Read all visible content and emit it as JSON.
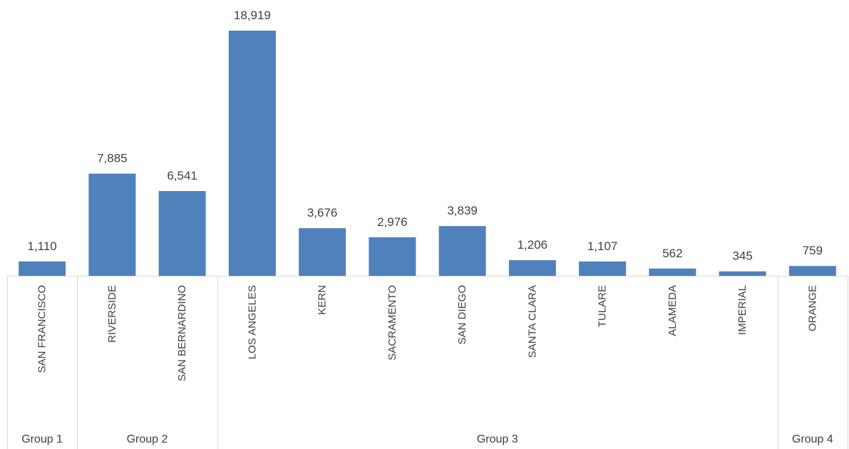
{
  "chart_data": {
    "type": "bar",
    "title": "",
    "xlabel": "",
    "ylabel": "",
    "ylim": [
      0,
      18919
    ],
    "grid": false,
    "legend": "none",
    "bar_color": "#4f81bd",
    "categories": [
      "SAN FRANCISCO",
      "RIVERSIDE",
      "SAN BERNARDINO",
      "LOS ANGELES",
      "KERN",
      "SACRAMENTO",
      "SAN DIEGO",
      "SANTA CLARA",
      "TULARE",
      "ALAMEDA",
      "IMPERIAL",
      "ORANGE"
    ],
    "values": [
      1110,
      7885,
      6541,
      18919,
      3676,
      2976,
      3839,
      1206,
      1107,
      562,
      345,
      759
    ],
    "value_labels": [
      "1,110",
      "7,885",
      "6,541",
      "18,919",
      "3,676",
      "2,976",
      "3,839",
      "1,206",
      "1,107",
      "562",
      "345",
      "759"
    ],
    "groups": [
      {
        "name": "Group 1",
        "count": 1
      },
      {
        "name": "Group 2",
        "count": 2
      },
      {
        "name": "Group 3",
        "count": 8
      },
      {
        "name": "Group 4",
        "count": 1
      }
    ]
  }
}
